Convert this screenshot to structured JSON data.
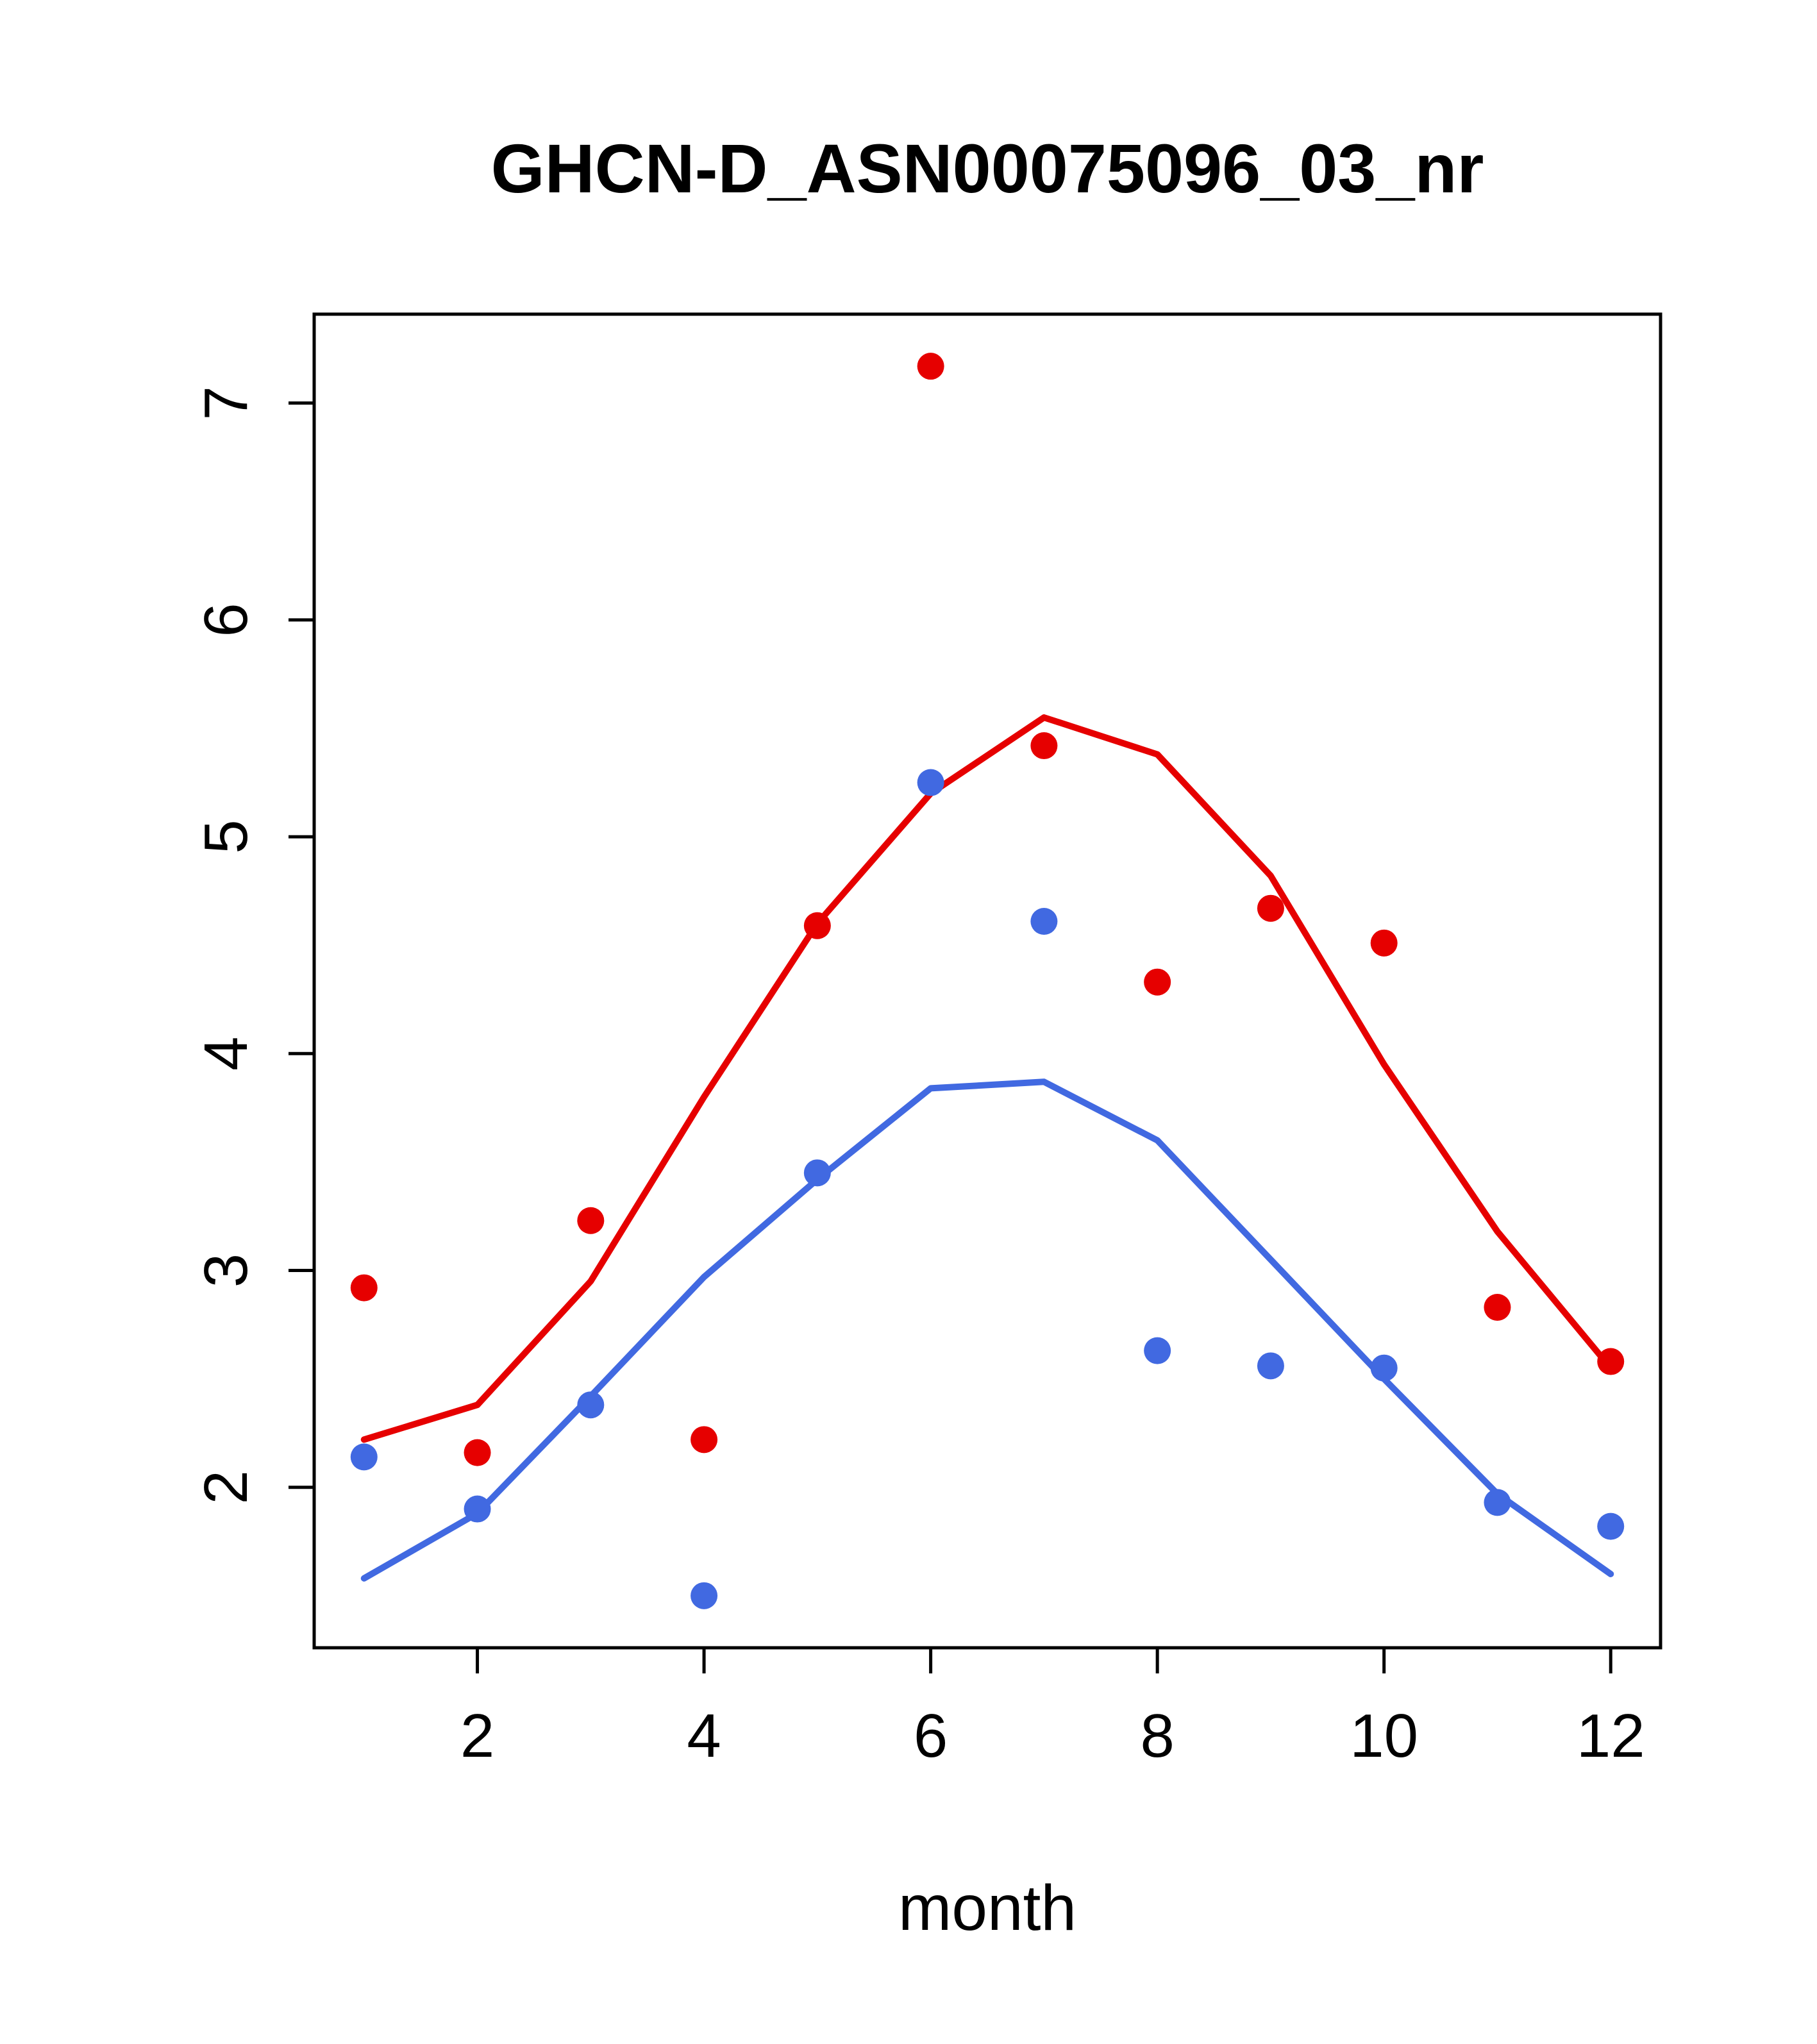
{
  "chart_data": {
    "type": "scatter",
    "title": "GHCN-D_ASN00075096_03_nr",
    "xlabel": "month",
    "ylabel": "",
    "x": [
      1,
      2,
      3,
      4,
      5,
      6,
      7,
      8,
      9,
      10,
      11,
      12
    ],
    "series": [
      {
        "name": "red-points",
        "kind": "points",
        "color": "#e60000",
        "values": [
          2.92,
          2.16,
          3.23,
          2.22,
          4.59,
          7.17,
          5.42,
          4.33,
          4.67,
          4.51,
          2.83,
          2.58
        ]
      },
      {
        "name": "blue-points",
        "kind": "points",
        "color": "#4169e1",
        "values": [
          2.14,
          1.9,
          2.38,
          1.5,
          3.45,
          5.25,
          4.61,
          2.63,
          2.56,
          2.55,
          1.93,
          1.82
        ]
      },
      {
        "name": "red-line",
        "kind": "line",
        "color": "#e60000",
        "values": [
          2.22,
          2.38,
          2.95,
          3.8,
          4.6,
          5.2,
          5.55,
          5.38,
          4.82,
          3.95,
          3.18,
          2.55
        ]
      },
      {
        "name": "blue-line",
        "kind": "line",
        "color": "#4169e1",
        "values": [
          1.58,
          1.88,
          2.42,
          2.97,
          3.42,
          3.84,
          3.87,
          3.6,
          3.05,
          2.5,
          1.97,
          1.6
        ]
      }
    ],
    "xlim": [
      0.56,
      12.44
    ],
    "ylim": [
      1.26,
      7.41
    ],
    "x_ticks": [
      2,
      4,
      6,
      8,
      10,
      12
    ],
    "y_ticks": [
      2,
      3,
      4,
      5,
      6,
      7
    ],
    "grid": false,
    "legend": "none",
    "frame_color": "#000000"
  }
}
